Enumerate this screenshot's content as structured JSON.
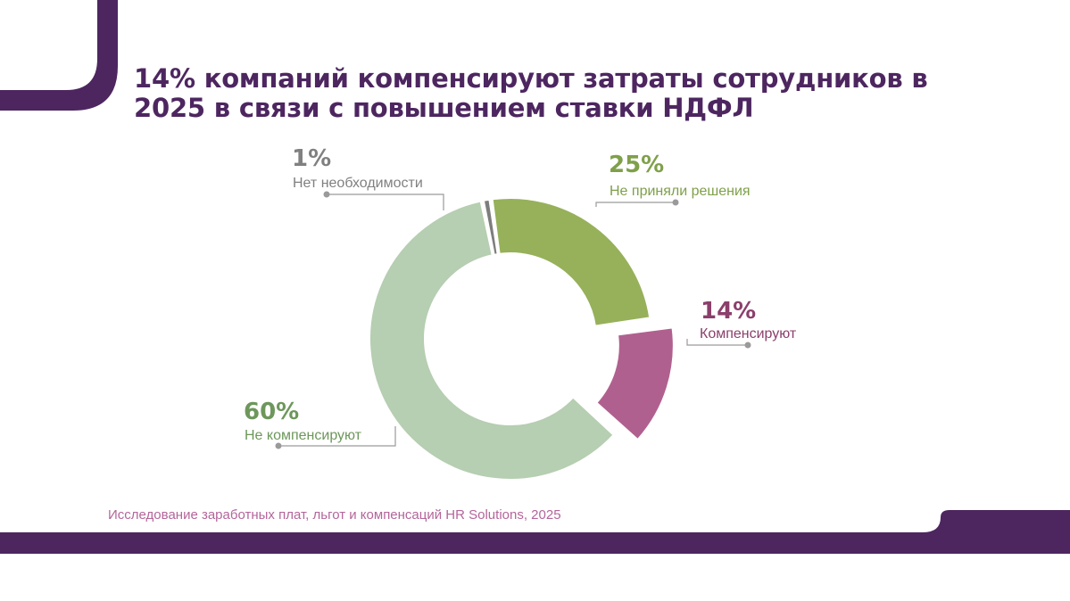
{
  "title": "14% компаний компенсируют затраты сотрудников в 2025 в связи с повышением ставки НДФЛ",
  "source": "Исследование заработных плат, льгот и компенсаций HR Solutions, 2025",
  "colors": {
    "brand": "#4d2660",
    "source_text": "#b4659a",
    "leader_line": "#9a9a9a"
  },
  "chart_data": {
    "type": "pie",
    "variant": "donut",
    "title": "14% компаний компенсируют затраты сотрудников в 2025 в связи с повышением ставки НДФЛ",
    "slices": [
      {
        "label": "Не приняли решения",
        "value": 25,
        "value_label": "25%",
        "color": "#96b15a",
        "label_color": "#7fa04a"
      },
      {
        "label": "Компенсируют",
        "value": 14,
        "value_label": "14%",
        "color": "#b0608f",
        "label_color": "#8b3f6b",
        "exploded": true
      },
      {
        "label": "Не компенсируют",
        "value": 60,
        "value_label": "60%",
        "color": "#b6ceb1",
        "label_color": "#6d975b"
      },
      {
        "label": "Нет необходимости",
        "value": 1,
        "value_label": "1%",
        "color": "#7d7d7d",
        "label_color": "#808080"
      }
    ],
    "legend": "none"
  }
}
